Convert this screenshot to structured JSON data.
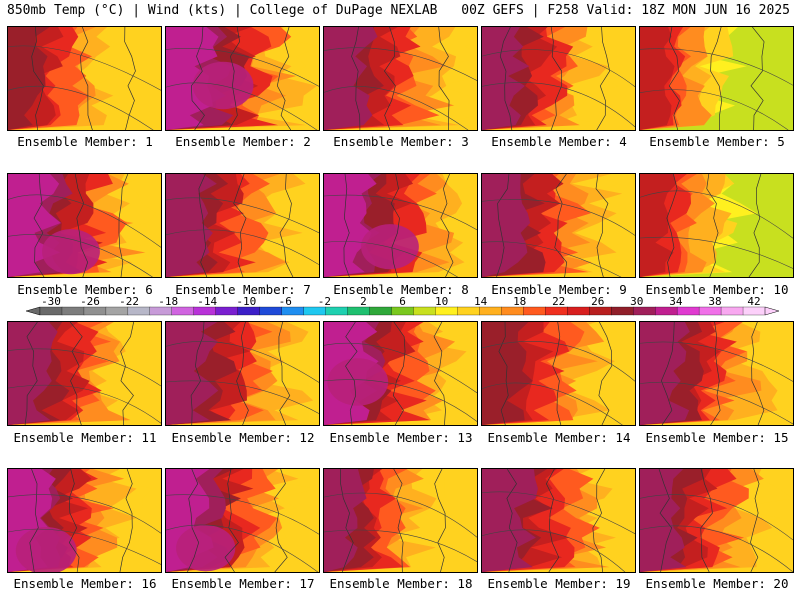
{
  "header": {
    "left": "850mb Temp (°C) | Wind (kts) | College of DuPage NEXLAB",
    "right": "00Z GEFS | F258 Valid: 18Z MON JUN 16 2025"
  },
  "panels": [
    {
      "label": "Ensemble Member: 1",
      "warm": 0.55,
      "east": 0.35
    },
    {
      "label": "Ensemble Member: 2",
      "warm": 0.85,
      "east": 0.6
    },
    {
      "label": "Ensemble Member: 3",
      "warm": 0.7,
      "east": 0.55
    },
    {
      "label": "Ensemble Member: 4",
      "warm": 0.6,
      "east": 0.45
    },
    {
      "label": "Ensemble Member: 5",
      "warm": 0.5,
      "east": 0.25
    },
    {
      "label": "Ensemble Member: 6",
      "warm": 0.75,
      "east": 0.55
    },
    {
      "label": "Ensemble Member: 7",
      "warm": 0.65,
      "east": 0.5
    },
    {
      "label": "Ensemble Member: 8",
      "warm": 0.75,
      "east": 0.55
    },
    {
      "label": "Ensemble Member: 9",
      "warm": 0.7,
      "east": 0.5
    },
    {
      "label": "Ensemble Member: 10",
      "warm": 0.55,
      "east": 0.3
    },
    {
      "label": "Ensemble Member: 11",
      "warm": 0.7,
      "east": 0.5
    },
    {
      "label": "Ensemble Member: 12",
      "warm": 0.6,
      "east": 0.55
    },
    {
      "label": "Ensemble Member: 13",
      "warm": 0.85,
      "east": 0.55
    },
    {
      "label": "Ensemble Member: 14",
      "warm": 0.55,
      "east": 0.5
    },
    {
      "label": "Ensemble Member: 15",
      "warm": 0.65,
      "east": 0.5
    },
    {
      "label": "Ensemble Member: 16",
      "warm": 0.85,
      "east": 0.45
    },
    {
      "label": "Ensemble Member: 17",
      "warm": 0.8,
      "east": 0.5
    },
    {
      "label": "Ensemble Member: 18",
      "warm": 0.6,
      "east": 0.35
    },
    {
      "label": "Ensemble Member: 19",
      "warm": 0.65,
      "east": 0.55
    },
    {
      "label": "Ensemble Member: 20",
      "warm": 0.65,
      "east": 0.5
    }
  ],
  "colorbar": {
    "ticks": [
      "-30",
      "-26",
      "-22",
      "-18",
      "-14",
      "-10",
      "-6",
      "-2",
      "2",
      "6",
      "10",
      "14",
      "18",
      "22",
      "26",
      "30",
      "34",
      "38",
      "42"
    ],
    "colors": [
      "#6a6a6a",
      "#7d7d7d",
      "#909090",
      "#a4a4a4",
      "#b7b7c8",
      "#c79bd8",
      "#d064e0",
      "#b832d8",
      "#7a1fd0",
      "#3c1fc8",
      "#1f4ad8",
      "#1f8ef0",
      "#1fc8f0",
      "#1fd0b0",
      "#1fc070",
      "#2fa83a",
      "#7ac81f",
      "#c8e01f",
      "#fff01f",
      "#ffd21f",
      "#ffb01f",
      "#ff8c1f",
      "#ff5a1f",
      "#f0301f",
      "#d81f1f",
      "#b81f1f",
      "#901f2a",
      "#a01f5a",
      "#c01f90",
      "#e03ad0",
      "#f070e8",
      "#f8a8f0",
      "#fcd0fa"
    ]
  }
}
